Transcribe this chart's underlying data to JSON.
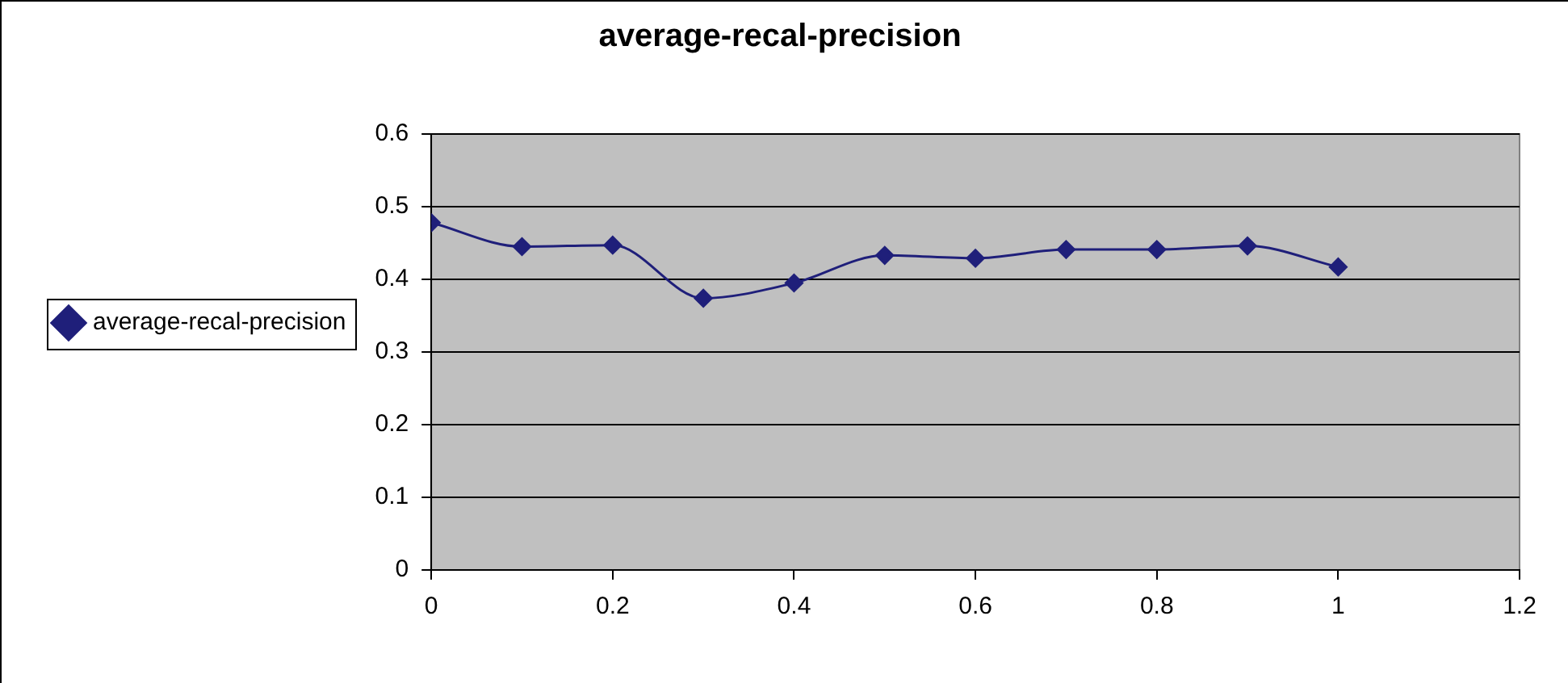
{
  "chart_data": {
    "type": "line",
    "title": "average-recal-precision",
    "x": [
      0,
      0.1,
      0.2,
      0.3,
      0.4,
      0.5,
      0.6,
      0.7,
      0.8,
      0.9,
      1
    ],
    "series": [
      {
        "name": "average-recal-precision",
        "color": "#1f1f7a",
        "values": [
          0.478,
          0.445,
          0.447,
          0.374,
          0.395,
          0.433,
          0.429,
          0.441,
          0.441,
          0.446,
          0.417
        ]
      }
    ],
    "xlim": [
      0,
      1.2
    ],
    "xticks": [
      0,
      0.2,
      0.4,
      0.6,
      0.8,
      1,
      1.2
    ],
    "ylim": [
      0,
      0.6
    ],
    "yticks": [
      0,
      0.1,
      0.2,
      0.3,
      0.4,
      0.5,
      0.6
    ],
    "grid": "y",
    "legend": "left",
    "marker": "diamond",
    "line_style": "solid"
  }
}
